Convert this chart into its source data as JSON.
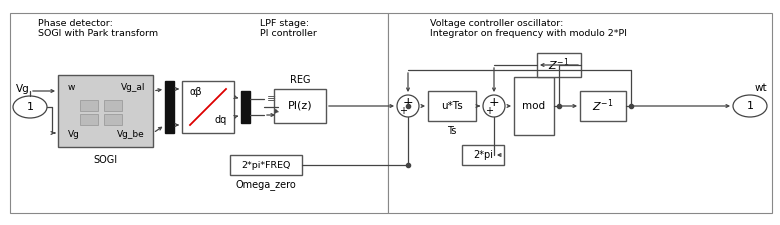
{
  "fig_width": 7.8,
  "fig_height": 2.25,
  "dpi": 100,
  "title_left": "Phase detector:\nSOGI with Park transform",
  "title_right": "Voltage controller oscillator:\nIntegrator on frequency with modulo 2*PI",
  "label_lpf": "LPF stage:\nPI controller",
  "label_sogi": "SOGI",
  "label_omega_zero": "Omega_zero",
  "label_ts": "Ts",
  "label_wt": "wt",
  "label_vg": "Vg",
  "label_reg": "REG",
  "red_line": "#dd0000",
  "line_color": "#444444",
  "block_face_sogi": "#d0d0d0",
  "block_face_white": "#ffffff",
  "block_edge": "#444444",
  "mux_face": "#111111"
}
